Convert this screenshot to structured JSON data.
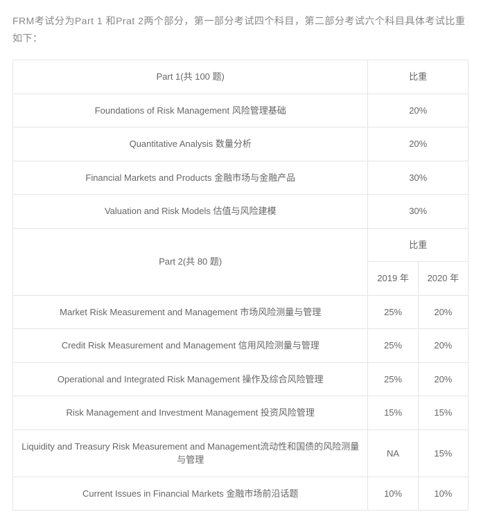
{
  "intro": "FRM考试分为Part 1 和Prat 2两个部分，第一部分考试四个科目，第二部分考试六个科目具体考试比重如下：",
  "part1": {
    "header_subject": "Part 1(共 100 题)",
    "header_weight": "比重",
    "rows": [
      {
        "subject": "Foundations of Risk Management 风险管理基础",
        "weight": "20%"
      },
      {
        "subject": "Quantitative Analysis 数量分析",
        "weight": "20%"
      },
      {
        "subject": "Financial Markets and Products 金融市场与金融产品",
        "weight": "30%"
      },
      {
        "subject": "Valuation and Risk Models 估值与风险建模",
        "weight": "30%"
      }
    ]
  },
  "part2": {
    "header_subject": "Part 2(共 80 题)",
    "header_weight": "比重",
    "year1": "2019 年",
    "year2": "2020 年",
    "rows": [
      {
        "subject": "Market Risk Measurement and Management 市场风险测量与管理",
        "w1": "25%",
        "w2": "20%"
      },
      {
        "subject": "Credit Risk Measurement and Management 信用风险测量与管理",
        "w1": "25%",
        "w2": "20%"
      },
      {
        "subject": "Operational and Integrated Risk Management 操作及综合风险管理",
        "w1": "25%",
        "w2": "20%"
      },
      {
        "subject": "Risk Management and Investment Management 投资风险管理",
        "w1": "15%",
        "w2": "15%"
      },
      {
        "subject": "Liquidity and Treasury Risk Measurement and Management流动性和国债的风险测量与管理",
        "w1": "NA",
        "w2": "15%"
      },
      {
        "subject": "Current Issues in Financial Markets 金融市场前沿话题",
        "w1": "10%",
        "w2": "10%"
      }
    ]
  },
  "style": {
    "text_color": "#666666",
    "intro_color": "#888888",
    "border_color": "#e5e5e5",
    "background_color": "#ffffff",
    "body_fontsize": 14,
    "table_fontsize": 13,
    "cell_padding": "14px 8px"
  }
}
